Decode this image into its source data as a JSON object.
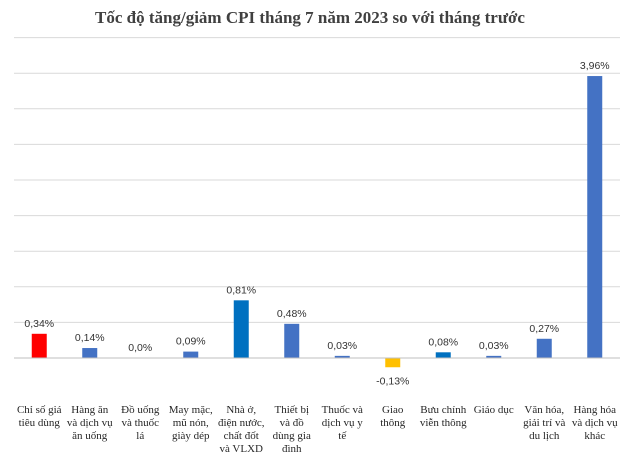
{
  "chart_data": {
    "type": "bar",
    "title": "Tốc độ tăng/giảm CPI tháng 7 năm 2023 so với tháng trước",
    "xlabel": "",
    "ylabel": "",
    "ylim": [
      -0.5,
      4.5
    ],
    "grid": true,
    "legend": "none",
    "categories": [
      [
        "Chỉ số giá",
        "tiêu dùng"
      ],
      [
        "Hàng ăn",
        "và dịch vụ",
        "ăn uống"
      ],
      [
        "Đồ uống",
        "và thuốc",
        "lá"
      ],
      [
        "May mặc,",
        "mũ nón,",
        "giày dép"
      ],
      [
        "Nhà ở,",
        "điện nước,",
        "chất đốt",
        "và VLXD"
      ],
      [
        "Thiết bị",
        "và đồ",
        "dùng gia",
        "đình"
      ],
      [
        "Thuốc và",
        "dịch vụ y",
        "tế"
      ],
      [
        "Giao",
        "thông"
      ],
      [
        "Bưu chính",
        "viễn thông"
      ],
      [
        "Giáo dục"
      ],
      [
        "Văn hóa,",
        "giải trí và",
        "du lịch"
      ],
      [
        "Hàng hóa",
        "và dịch vụ",
        "khác"
      ]
    ],
    "values": [
      0.34,
      0.14,
      0.0,
      0.09,
      0.81,
      0.48,
      0.03,
      -0.13,
      0.08,
      0.03,
      0.27,
      3.96
    ],
    "data_labels": [
      "0,34%",
      "0,14%",
      "0,0%",
      "0,09%",
      "0,81%",
      "0,48%",
      "0,03%",
      "-0,13%",
      "0,08%",
      "0,03%",
      "0,27%",
      "3,96%"
    ],
    "colors": [
      "#ff0000",
      "#4472c4",
      "#4472c4",
      "#4472c4",
      "#0070c0",
      "#4472c4",
      "#4472c4",
      "#ffc000",
      "#0070c0",
      "#4472c4",
      "#4472c4",
      "#4472c4"
    ]
  }
}
